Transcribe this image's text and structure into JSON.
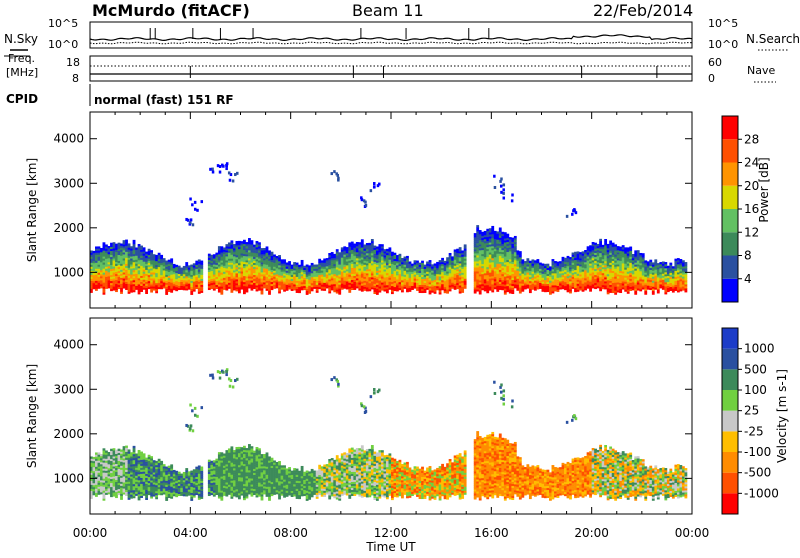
{
  "header": {
    "station": "McMurdo (fitACF)",
    "beam": "Beam 11",
    "date": "22/Feb/2014"
  },
  "strip_sky": {
    "left_label": "N.Sky",
    "tick_top": "10^5",
    "tick_bottom": "10^0",
    "right_label": "N.Search"
  },
  "strip_freq": {
    "left_label_1": "Freq.",
    "left_label_2": "[MHz]",
    "left_tick_top": "18",
    "left_tick_bottom": "8",
    "right_tick_top": "60",
    "right_tick_bottom": "0",
    "right_label": "Nave"
  },
  "cpid": {
    "label": "CPID",
    "text": "normal (fast) 151 RF"
  },
  "x_axis": {
    "label": "Time UT",
    "ticks": [
      "00:00",
      "04:00",
      "08:00",
      "12:00",
      "16:00",
      "20:00",
      "00:00"
    ]
  },
  "colors": {
    "power": [
      "#0000ff",
      "#2a50a0",
      "#3c8a5a",
      "#62c062",
      "#d8d800",
      "#ff9400",
      "#ff5000",
      "#ff0000"
    ],
    "velocity": [
      "#ff0000",
      "#ff5000",
      "#ff8c00",
      "#ffbe00",
      "#c8c8c8",
      "#70d040",
      "#3c8a5a",
      "#2a50a0",
      "#1c3cc8"
    ]
  },
  "chart_data": [
    {
      "type": "heatmap",
      "panel": "power",
      "xlabel": "",
      "ylabel": "Slant Range [km]",
      "x_range_hours": [
        0,
        24
      ],
      "ylim": [
        200,
        4600
      ],
      "yticks": [
        1000,
        2000,
        3000,
        4000
      ],
      "colorbar": {
        "label": "Power [dB]",
        "range": [
          0,
          32
        ],
        "ticks": [
          "4",
          "8",
          "12",
          "16",
          "20",
          "24",
          "28"
        ]
      }
    },
    {
      "type": "heatmap",
      "panel": "velocity",
      "xlabel": "Time UT",
      "ylabel": "Slant Range [km]",
      "x_range_hours": [
        0,
        24
      ],
      "ylim": [
        200,
        4600
      ],
      "yticks": [
        1000,
        2000,
        3000,
        4000
      ],
      "colorbar": {
        "label": "Velocity [m s-1]",
        "ticks": [
          "1000",
          "500",
          "100",
          "25",
          "-25",
          "-100",
          "-500",
          "-1000"
        ]
      }
    }
  ]
}
